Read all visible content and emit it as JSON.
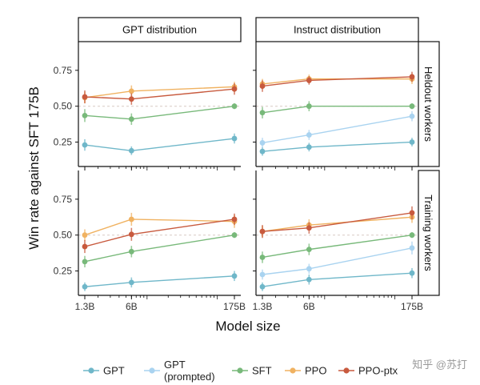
{
  "chart_data": {
    "type": "line",
    "ylabel": "Win rate against SFT 175B",
    "xlabel": "Model size",
    "x": [
      1.3,
      6,
      175
    ],
    "x_tick_labels": [
      "1.3B",
      "6B",
      "175B"
    ],
    "y_ticks": [
      0.25,
      0.5,
      0.75
    ],
    "y_tick_labels": [
      "0.25",
      "0.50",
      "0.75"
    ],
    "ylim": [
      0.08,
      0.95
    ],
    "reference_line": 0.5,
    "columns": [
      "GPT distribution",
      "Instruct distribution"
    ],
    "rows": [
      "Heldout workers",
      "Training workers"
    ],
    "series_styles": [
      {
        "name": "GPT",
        "color": "#6fb7c9"
      },
      {
        "name": "GPT (prompted)",
        "color": "#a9d3f0"
      },
      {
        "name": "SFT",
        "color": "#78b97a"
      },
      {
        "name": "PPO",
        "color": "#f0b261"
      },
      {
        "name": "PPO-ptx",
        "color": "#c85a3e"
      }
    ],
    "panels": [
      {
        "row": 0,
        "col": 0,
        "series": [
          {
            "name": "GPT",
            "values": [
              0.23,
              0.19,
              0.275
            ],
            "err": [
              0.04,
              0.03,
              0.035
            ]
          },
          {
            "name": "SFT",
            "values": [
              0.435,
              0.41,
              0.5
            ],
            "err": [
              0.045,
              0.04,
              0.02
            ]
          },
          {
            "name": "PPO",
            "values": [
              0.56,
              0.605,
              0.635
            ],
            "err": [
              0.04,
              0.04,
              0.035
            ]
          },
          {
            "name": "PPO-ptx",
            "values": [
              0.565,
              0.55,
              0.62
            ],
            "err": [
              0.045,
              0.04,
              0.04
            ]
          }
        ]
      },
      {
        "row": 0,
        "col": 1,
        "series": [
          {
            "name": "GPT",
            "values": [
              0.185,
              0.215,
              0.25
            ],
            "err": [
              0.03,
              0.03,
              0.03
            ]
          },
          {
            "name": "GPT (prompted)",
            "values": [
              0.245,
              0.3,
              0.43
            ],
            "err": [
              0.035,
              0.035,
              0.035
            ]
          },
          {
            "name": "SFT",
            "values": [
              0.455,
              0.5,
              0.5
            ],
            "err": [
              0.04,
              0.035,
              0.02
            ]
          },
          {
            "name": "PPO",
            "values": [
              0.655,
              0.69,
              0.69
            ],
            "err": [
              0.035,
              0.03,
              0.035
            ]
          },
          {
            "name": "PPO-ptx",
            "values": [
              0.64,
              0.68,
              0.705
            ],
            "err": [
              0.04,
              0.03,
              0.035
            ]
          }
        ]
      },
      {
        "row": 1,
        "col": 0,
        "series": [
          {
            "name": "GPT",
            "values": [
              0.14,
              0.17,
              0.215
            ],
            "err": [
              0.03,
              0.035,
              0.035
            ]
          },
          {
            "name": "SFT",
            "values": [
              0.315,
              0.385,
              0.5
            ],
            "err": [
              0.04,
              0.04,
              0.02
            ]
          },
          {
            "name": "PPO",
            "values": [
              0.5,
              0.61,
              0.595
            ],
            "err": [
              0.04,
              0.045,
              0.045
            ]
          },
          {
            "name": "PPO-ptx",
            "values": [
              0.42,
              0.505,
              0.61
            ],
            "err": [
              0.045,
              0.045,
              0.04
            ]
          }
        ]
      },
      {
        "row": 1,
        "col": 1,
        "series": [
          {
            "name": "GPT",
            "values": [
              0.14,
              0.19,
              0.235
            ],
            "err": [
              0.03,
              0.035,
              0.035
            ]
          },
          {
            "name": "GPT (prompted)",
            "values": [
              0.225,
              0.265,
              0.41
            ],
            "err": [
              0.035,
              0.035,
              0.045
            ]
          },
          {
            "name": "SFT",
            "values": [
              0.345,
              0.4,
              0.5
            ],
            "err": [
              0.04,
              0.04,
              0.02
            ]
          },
          {
            "name": "PPO",
            "values": [
              0.525,
              0.57,
              0.625
            ],
            "err": [
              0.04,
              0.04,
              0.04
            ]
          },
          {
            "name": "PPO-ptx",
            "values": [
              0.525,
              0.55,
              0.655
            ],
            "err": [
              0.045,
              0.04,
              0.045
            ]
          }
        ]
      }
    ],
    "legend": {
      "position": "bottom",
      "entries": [
        {
          "label": "GPT"
        },
        {
          "label_line1": "GPT",
          "label_line2": "(prompted)"
        },
        {
          "label": "SFT"
        },
        {
          "label": "PPO"
        },
        {
          "label": "PPO-ptx"
        }
      ]
    }
  },
  "watermark": "知乎 @苏打"
}
